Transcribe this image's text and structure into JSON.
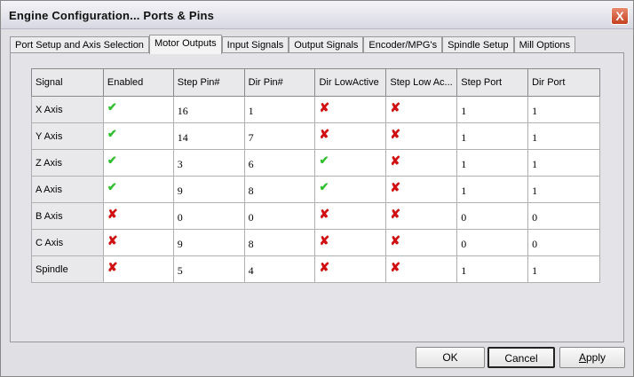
{
  "window": {
    "title": "Engine Configuration... Ports & Pins",
    "close": "X"
  },
  "tabs": [
    "Port Setup and Axis Selection",
    "Motor Outputs",
    "Input Signals",
    "Output Signals",
    "Encoder/MPG's",
    "Spindle Setup",
    "Mill Options"
  ],
  "active_tab": "Motor Outputs",
  "table": {
    "columns": [
      "Signal",
      "Enabled",
      "Step Pin#",
      "Dir Pin#",
      "Dir LowActive",
      "Step Low Ac...",
      "Step Port",
      "Dir Port"
    ],
    "rows": [
      {
        "signal": "X Axis",
        "enabled": true,
        "step_pin": "16",
        "dir_pin": "1",
        "dir_low": false,
        "step_low": false,
        "step_port": "1",
        "dir_port": "1"
      },
      {
        "signal": "Y Axis",
        "enabled": true,
        "step_pin": "14",
        "dir_pin": "7",
        "dir_low": false,
        "step_low": false,
        "step_port": "1",
        "dir_port": "1"
      },
      {
        "signal": "Z Axis",
        "enabled": true,
        "step_pin": "3",
        "dir_pin": "6",
        "dir_low": true,
        "step_low": false,
        "step_port": "1",
        "dir_port": "1"
      },
      {
        "signal": "A Axis",
        "enabled": true,
        "step_pin": "9",
        "dir_pin": "8",
        "dir_low": true,
        "step_low": false,
        "step_port": "1",
        "dir_port": "1"
      },
      {
        "signal": "B Axis",
        "enabled": false,
        "step_pin": "0",
        "dir_pin": "0",
        "dir_low": false,
        "step_low": false,
        "step_port": "0",
        "dir_port": "0"
      },
      {
        "signal": "C Axis",
        "enabled": false,
        "step_pin": "9",
        "dir_pin": "8",
        "dir_low": false,
        "step_low": false,
        "step_port": "0",
        "dir_port": "0"
      },
      {
        "signal": "Spindle",
        "enabled": false,
        "step_pin": "5",
        "dir_pin": "4",
        "dir_low": false,
        "step_low": false,
        "step_port": "1",
        "dir_port": "1"
      }
    ]
  },
  "icons": {
    "true": "green-check-icon",
    "false": "red-x-icon"
  },
  "buttons": {
    "ok": "OK",
    "cancel": "Cancel",
    "apply": "Apply"
  }
}
